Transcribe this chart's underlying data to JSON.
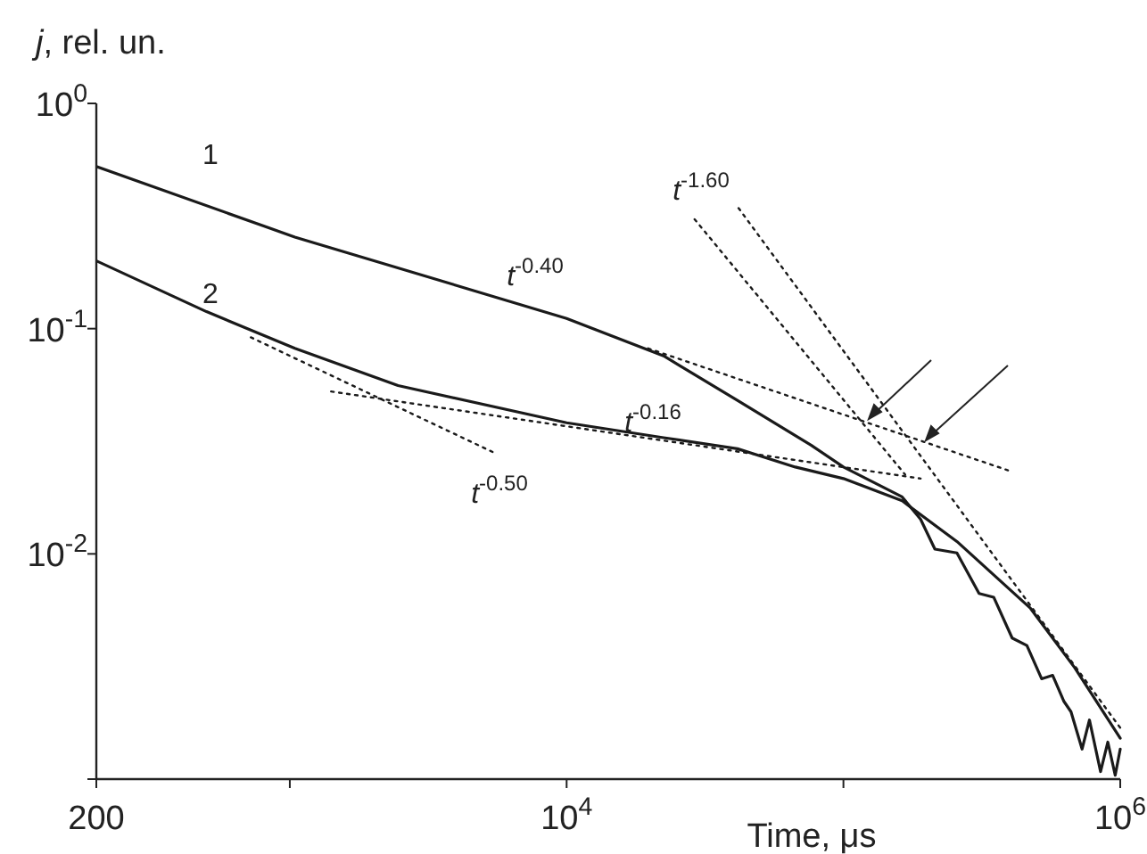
{
  "chart_data": {
    "type": "line",
    "xlabel": "Time, μs",
    "ylabel": "j, rel. un.",
    "log": "xy",
    "xlim": [
      200,
      1000000
    ],
    "ylim": [
      0.001,
      1
    ],
    "xticks": [
      {
        "value": 200,
        "label": "200"
      },
      {
        "value": 1000,
        "label": null
      },
      {
        "value": 10000,
        "label": "10$^{4}$"
      },
      {
        "value": 100000,
        "label": null
      },
      {
        "value": 1000000,
        "label": "10$^{6}$"
      }
    ],
    "yticks": [
      {
        "value": 0.001,
        "label": null
      },
      {
        "value": 0.01,
        "label": "10$^{-2}$"
      },
      {
        "value": 0.1,
        "label": "10$^{-1}$"
      },
      {
        "value": 1,
        "label": "10$^{0}$"
      }
    ],
    "grid": false,
    "series": [
      {
        "color": "#1a1a1a",
        "line_style": "solid",
        "x": [
          200,
          1043,
          10000,
          22400,
          41400,
          76400,
          100000,
          163000,
          190000,
          214000,
          257000,
          309000,
          349000,
          407000,
          460000,
          520000,
          570000,
          625000,
          664000,
          728000,
          774000,
          849000,
          902000,
          959000,
          1000000
        ],
        "values": [
          0.525,
          0.255,
          0.111,
          0.0757,
          0.048,
          0.0304,
          0.0243,
          0.0179,
          0.01425,
          0.0105,
          0.0101,
          0.00667,
          0.00642,
          0.00423,
          0.00392,
          0.00279,
          0.00289,
          0.00222,
          0.00199,
          0.00136,
          0.00183,
          0.00108,
          0.00146,
          0.00104,
          0.00136
        ]
      },
      {
        "color": "#1a1a1a",
        "line_style": "solid",
        "x": [
          200,
          500,
          1043,
          2460,
          10000,
          22400,
          41400,
          67000,
          100000,
          163000,
          257000,
          474000,
          685000,
          1000000
        ],
        "values": [
          0.2,
          0.119,
          0.0817,
          0.0559,
          0.0382,
          0.0328,
          0.0293,
          0.0243,
          0.0216,
          0.0172,
          0.01135,
          0.00573,
          0.00312,
          0.00152
        ]
      },
      {
        "color": "#1a1a1a",
        "line_style": "dotted",
        "x": [
          19700,
          401000
        ],
        "values": [
          0.0817,
          0.0233
        ]
      },
      {
        "color": "#1a1a1a",
        "line_style": "dotted",
        "x": [
          1410,
          190000
        ],
        "values": [
          0.0526,
          0.0216
        ]
      },
      {
        "color": "#1a1a1a",
        "line_style": "dotted",
        "x": [
          723,
          5450
        ],
        "values": [
          0.0915,
          0.0282
        ]
      },
      {
        "color": "#1a1a1a",
        "line_style": "dotted",
        "x": [
          29000,
          167000
        ],
        "values": [
          0.306,
          0.0225
        ]
      },
      {
        "color": "#1a1a1a",
        "line_style": "dotted",
        "x": [
          41800,
          1000000
        ],
        "values": [
          0.343,
          0.00169
        ]
      }
    ],
    "annotations": [
      "1",
      "2",
      "t$^{-0.40}$",
      "t$^{-0.16}$",
      "t$^{-0.50}$",
      "t$^{-1.60}$"
    ]
  }
}
